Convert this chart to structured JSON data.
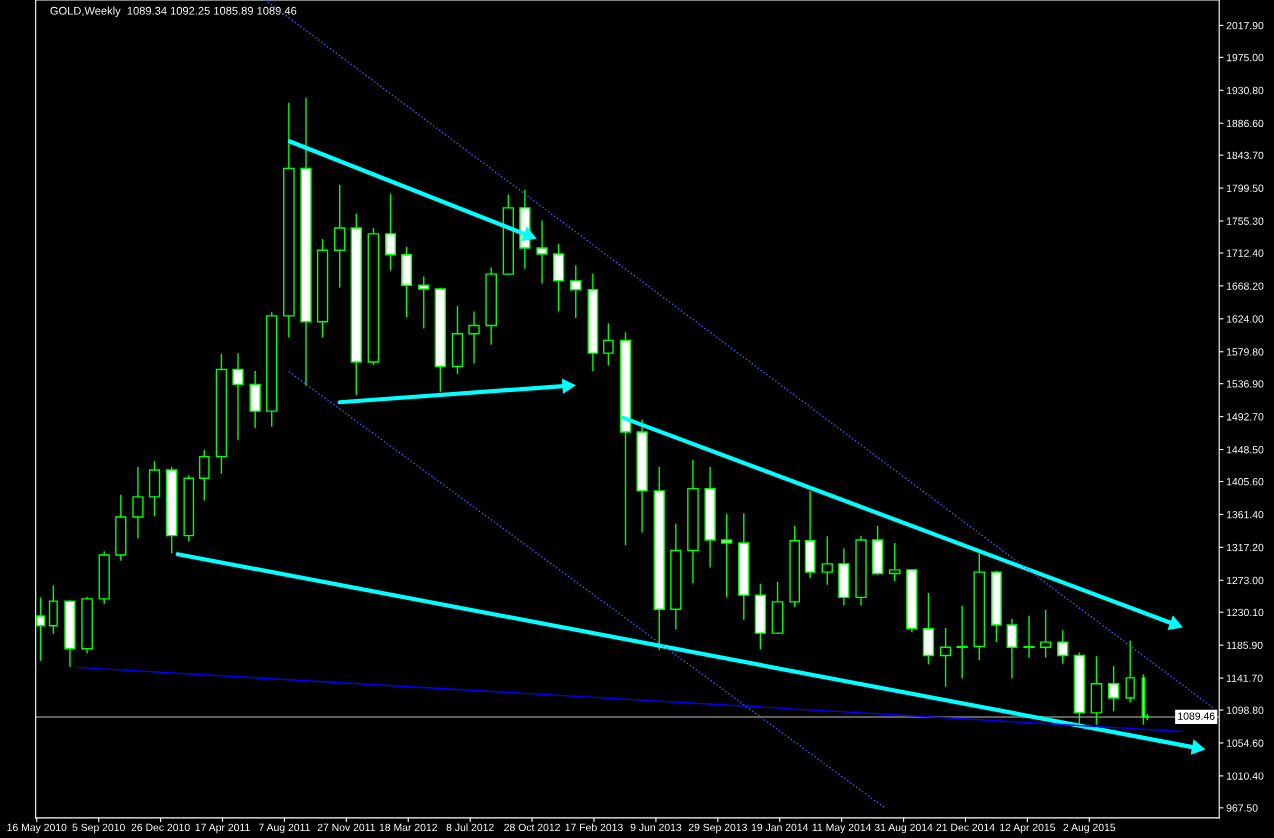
{
  "chart_data": {
    "type": "candlestick",
    "title": "GOLD,Weekly  1089.34 1092.25 1085.89 1089.46",
    "xlim": [
      "2010-05-14",
      "2016-03-24"
    ],
    "ylim": [
      954,
      2052
    ],
    "xticks": [
      {
        "value": "2010-05-16",
        "label": "16 May 2010"
      },
      {
        "value": "2010-09-05",
        "label": "5 Sep 2010"
      },
      {
        "value": "2010-12-26",
        "label": "26 Dec 2010"
      },
      {
        "value": "2011-04-17",
        "label": "17 Apr 2011"
      },
      {
        "value": "2011-08-07",
        "label": "7 Aug 2011"
      },
      {
        "value": "2011-11-27",
        "label": "27 Nov 2011"
      },
      {
        "value": "2012-03-18",
        "label": "18 Mar 2012"
      },
      {
        "value": "2012-07-08",
        "label": "8 Jul 2012"
      },
      {
        "value": "2012-10-28",
        "label": "28 Oct 2012"
      },
      {
        "value": "2013-02-17",
        "label": "17 Feb 2013"
      },
      {
        "value": "2013-06-09",
        "label": "9 Jun 2013"
      },
      {
        "value": "2013-09-29",
        "label": "29 Sep 2013"
      },
      {
        "value": "2014-01-19",
        "label": "19 Jan 2014"
      },
      {
        "value": "2014-05-11",
        "label": "11 May 2014"
      },
      {
        "value": "2014-08-31",
        "label": "31 Aug 2014"
      },
      {
        "value": "2014-12-21",
        "label": "21 Dec 2014"
      },
      {
        "value": "2015-04-12",
        "label": "12 Apr 2015"
      },
      {
        "value": "2015-08-02",
        "label": "2 Aug 2015"
      }
    ],
    "yticks": [
      {
        "value": 2017.9,
        "label": "2017.90"
      },
      {
        "value": 1975.0,
        "label": "1975.00"
      },
      {
        "value": 1930.8,
        "label": "1930.80"
      },
      {
        "value": 1886.6,
        "label": "1886.60"
      },
      {
        "value": 1843.7,
        "label": "1843.70"
      },
      {
        "value": 1799.5,
        "label": "1799.50"
      },
      {
        "value": 1755.3,
        "label": "1755.30"
      },
      {
        "value": 1712.4,
        "label": "1712.40"
      },
      {
        "value": 1668.2,
        "label": "1668.20"
      },
      {
        "value": 1624.0,
        "label": "1624.00"
      },
      {
        "value": 1579.8,
        "label": "1579.80"
      },
      {
        "value": 1536.9,
        "label": "1536.90"
      },
      {
        "value": 1492.7,
        "label": "1492.70"
      },
      {
        "value": 1448.5,
        "label": "1448.50"
      },
      {
        "value": 1405.6,
        "label": "1405.60"
      },
      {
        "value": 1361.4,
        "label": "1361.40"
      },
      {
        "value": 1317.2,
        "label": "1317.20"
      },
      {
        "value": 1273.0,
        "label": "1273.00"
      },
      {
        "value": 1230.1,
        "label": "1230.10"
      },
      {
        "value": 1185.9,
        "label": "1185.90"
      },
      {
        "value": 1141.7,
        "label": "1141.70"
      },
      {
        "value": 1098.8,
        "label": "1098.80"
      },
      {
        "value": 1054.6,
        "label": "1054.60"
      },
      {
        "value": 1010.4,
        "label": "1010.40"
      },
      {
        "value": 967.5,
        "label": "967.50"
      }
    ],
    "ref_lines": [
      {
        "axis": "y",
        "value": 1089.46,
        "label": "1089.46",
        "color": "#c0c0c0"
      }
    ],
    "grid": false,
    "series": [
      {
        "color": "#00ff00",
        "x": [
          "2010-05-23",
          "2010-06-15",
          "2010-07-15",
          "2010-08-15",
          "2010-09-15",
          "2010-10-15",
          "2010-11-15",
          "2010-12-15",
          "2011-01-15",
          "2011-02-15",
          "2011-03-15",
          "2011-04-15",
          "2011-05-15",
          "2011-06-15",
          "2011-07-15",
          "2011-08-15",
          "2011-09-15",
          "2011-10-15",
          "2011-11-15",
          "2011-12-15",
          "2012-01-15",
          "2012-02-15",
          "2012-03-15",
          "2012-04-15",
          "2012-05-15",
          "2012-06-15",
          "2012-07-15",
          "2012-08-15",
          "2012-09-15",
          "2012-10-15",
          "2012-11-15",
          "2012-12-15",
          "2013-01-15",
          "2013-02-15",
          "2013-03-15",
          "2013-04-15",
          "2013-05-15",
          "2013-06-15",
          "2013-07-15",
          "2013-08-15",
          "2013-09-15",
          "2013-10-15",
          "2013-11-15",
          "2013-12-15",
          "2014-01-15",
          "2014-02-15",
          "2014-03-15",
          "2014-04-15",
          "2014-05-15",
          "2014-06-15",
          "2014-07-15",
          "2014-08-15",
          "2014-09-15",
          "2014-10-15",
          "2014-11-15",
          "2014-12-15",
          "2015-01-15",
          "2015-02-15",
          "2015-03-15",
          "2015-04-15",
          "2015-05-15",
          "2015-06-15",
          "2015-07-15",
          "2015-08-15",
          "2015-09-15",
          "2015-10-15",
          "2015-11-08",
          "2015-11-15"
        ],
        "ohlc": [
          [
            1225,
            1249,
            1166,
            1212
          ],
          [
            1212,
            1265,
            1202,
            1245
          ],
          [
            1245,
            1245,
            1157,
            1181
          ],
          [
            1181,
            1250,
            1176,
            1248
          ],
          [
            1248,
            1311,
            1242,
            1307
          ],
          [
            1307,
            1387,
            1300,
            1358
          ],
          [
            1358,
            1424,
            1330,
            1385
          ],
          [
            1385,
            1432,
            1360,
            1421
          ],
          [
            1421,
            1424,
            1310,
            1333
          ],
          [
            1333,
            1413,
            1326,
            1410
          ],
          [
            1410,
            1447,
            1381,
            1439
          ],
          [
            1439,
            1576,
            1417,
            1556
          ],
          [
            1556,
            1577,
            1462,
            1536
          ],
          [
            1536,
            1553,
            1478,
            1500
          ],
          [
            1500,
            1632,
            1480,
            1628
          ],
          [
            1628,
            1913,
            1600,
            1826
          ],
          [
            1826,
            1920,
            1535,
            1620
          ],
          [
            1620,
            1730,
            1600,
            1716
          ],
          [
            1716,
            1803,
            1667,
            1746
          ],
          [
            1746,
            1764,
            1523,
            1566
          ],
          [
            1566,
            1745,
            1563,
            1738
          ],
          [
            1738,
            1791,
            1690,
            1710
          ],
          [
            1710,
            1720,
            1627,
            1669
          ],
          [
            1669,
            1680,
            1612,
            1664
          ],
          [
            1664,
            1665,
            1527,
            1560
          ],
          [
            1560,
            1640,
            1551,
            1604
          ],
          [
            1604,
            1633,
            1565,
            1615
          ],
          [
            1615,
            1692,
            1590,
            1684
          ],
          [
            1684,
            1790,
            1684,
            1773
          ],
          [
            1773,
            1796,
            1692,
            1719
          ],
          [
            1719,
            1755,
            1672,
            1711
          ],
          [
            1711,
            1724,
            1635,
            1675
          ],
          [
            1675,
            1695,
            1626,
            1663
          ],
          [
            1663,
            1684,
            1555,
            1578
          ],
          [
            1578,
            1617,
            1562,
            1595
          ],
          [
            1595,
            1605,
            1321,
            1472
          ],
          [
            1472,
            1488,
            1338,
            1393
          ],
          [
            1393,
            1424,
            1180,
            1234
          ],
          [
            1234,
            1348,
            1208,
            1313
          ],
          [
            1313,
            1434,
            1270,
            1396
          ],
          [
            1396,
            1424,
            1291,
            1327
          ],
          [
            1327,
            1361,
            1251,
            1323
          ],
          [
            1323,
            1362,
            1221,
            1253
          ],
          [
            1253,
            1267,
            1181,
            1202
          ],
          [
            1202,
            1270,
            1202,
            1244
          ],
          [
            1244,
            1345,
            1238,
            1326
          ],
          [
            1326,
            1392,
            1277,
            1284
          ],
          [
            1284,
            1331,
            1268,
            1295
          ],
          [
            1295,
            1315,
            1240,
            1250
          ],
          [
            1250,
            1332,
            1240,
            1327
          ],
          [
            1327,
            1345,
            1281,
            1282
          ],
          [
            1282,
            1322,
            1273,
            1287
          ],
          [
            1287,
            1287,
            1204,
            1208
          ],
          [
            1208,
            1255,
            1161,
            1172
          ],
          [
            1172,
            1208,
            1131,
            1183
          ],
          [
            1183,
            1238,
            1142,
            1184
          ],
          [
            1184,
            1308,
            1167,
            1284
          ],
          [
            1284,
            1285,
            1191,
            1213
          ],
          [
            1213,
            1220,
            1142,
            1183
          ],
          [
            1183,
            1224,
            1170,
            1183
          ],
          [
            1183,
            1232,
            1170,
            1190
          ],
          [
            1190,
            1205,
            1162,
            1172
          ],
          [
            1172,
            1175,
            1077,
            1095
          ],
          [
            1095,
            1170,
            1080,
            1134
          ],
          [
            1134,
            1157,
            1098,
            1115
          ],
          [
            1115,
            1191,
            1110,
            1142
          ],
          [
            1142,
            1146,
            1080,
            1089
          ],
          [
            1089.34,
            1092.25,
            1085.89,
            1089.46
          ]
        ]
      },
      {
        "type": "line",
        "color": "#00ffff",
        "line_style": "solid",
        "marker": "triangle",
        "x": [
          "2011-08-17",
          "2012-10-21"
        ],
        "values": [
          1862,
          1736
        ]
      },
      {
        "type": "line",
        "color": "#00ffff",
        "line_style": "solid",
        "marker": "triangle",
        "x": [
          "2011-11-15",
          "2012-12-30"
        ],
        "values": [
          1512,
          1534
        ]
      },
      {
        "type": "line",
        "color": "#00ffff",
        "line_style": "solid",
        "marker": "triangle",
        "x": [
          "2013-04-11",
          "2016-01-03"
        ],
        "values": [
          1491,
          1214
        ]
      },
      {
        "type": "line",
        "color": "#00ffff",
        "line_style": "solid",
        "marker": "triangle",
        "x": [
          "2011-01-26",
          "2016-02-12"
        ],
        "values": [
          1308,
          1048
        ]
      },
      {
        "type": "line",
        "color": "#0000ff",
        "line_style": "solid",
        "x": [
          "2010-07-27",
          "2016-01-17"
        ],
        "values": [
          1156,
          1070
        ]
      },
      {
        "type": "line",
        "color": "#3366ff",
        "line_style": "dotted",
        "x": [
          "2011-07-03",
          "2016-03-16"
        ],
        "values": [
          2052,
          1100
        ]
      },
      {
        "type": "line",
        "color": "#3366ff",
        "line_style": "dotted",
        "x": [
          "2011-08-15",
          "2014-07-27"
        ],
        "values": [
          1553,
          968
        ]
      }
    ]
  }
}
